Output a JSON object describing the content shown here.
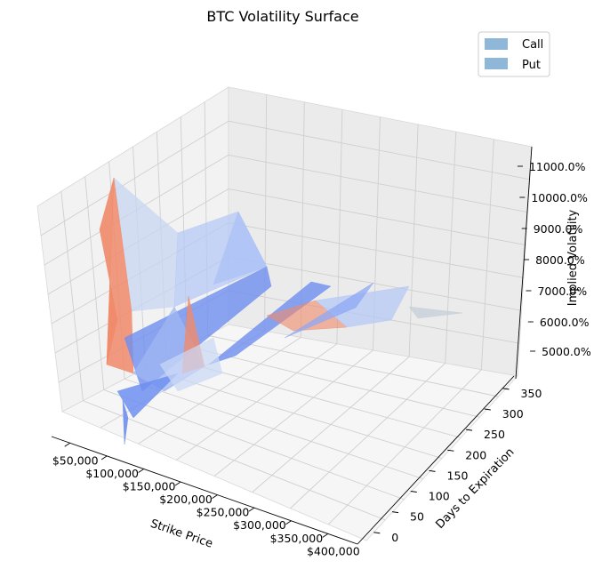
{
  "chart_data": {
    "type": "surface3d",
    "title": "BTC Volatility Surface",
    "xlabel": "Strike Price",
    "ylabel": "Days to Expiration",
    "zlabel": "Implied Volatility",
    "xticks": [
      "$50,000",
      "$100,000",
      "$150,000",
      "$200,000",
      "$250,000",
      "$300,000",
      "$350,000",
      "$400,000"
    ],
    "yticks": [
      "0",
      "50",
      "100",
      "150",
      "200",
      "250",
      "300",
      "350"
    ],
    "zticks": [
      "5000.0%",
      "6000.0%",
      "7000.0%",
      "8000.0%",
      "9000.0%",
      "10000.0%",
      "11000.0%"
    ],
    "legend": [
      {
        "name": "Call",
        "color": "#8fb8d8"
      },
      {
        "name": "Put",
        "color": "#8fb8d8"
      }
    ],
    "legend_position": "top-right",
    "colormap": "coolwarm",
    "colors": {
      "low": "#6f8ff0",
      "mid": "#c8d6f2",
      "high": "#f08a6a"
    }
  }
}
